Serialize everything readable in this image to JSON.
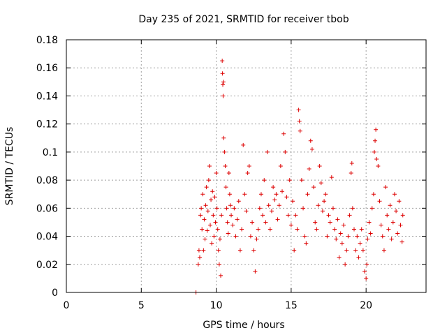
{
  "chart_data": {
    "type": "scatter",
    "title": "Day 235 of 2021, SRMTID for receiver tbob",
    "xlabel": "GPS time / hours",
    "ylabel": "SRMTID / TECUs",
    "xlim": [
      0,
      24
    ],
    "ylim": [
      0,
      0.18
    ],
    "xticks": [
      0,
      5,
      10,
      15,
      20
    ],
    "yticks": [
      0,
      0.02,
      0.04,
      0.06,
      0.08,
      0.1,
      0.12,
      0.14,
      0.16,
      0.18
    ],
    "xtick_labels": [
      "0",
      "5",
      "10",
      "15",
      "20"
    ],
    "ytick_labels": [
      "0",
      "0.02",
      "0.04",
      "0.06",
      "0.08",
      "0.1",
      "0.12",
      "0.14",
      "0.16",
      "0.18"
    ],
    "grid": true,
    "marker": "+",
    "color": "#dd0000",
    "series": [
      {
        "name": "SRMTID",
        "points": [
          [
            8.65,
            0.0
          ],
          [
            8.8,
            0.02
          ],
          [
            8.85,
            0.03
          ],
          [
            8.9,
            0.025
          ],
          [
            8.95,
            0.055
          ],
          [
            9.0,
            0.06
          ],
          [
            9.05,
            0.045
          ],
          [
            9.1,
            0.07
          ],
          [
            9.15,
            0.03
          ],
          [
            9.2,
            0.052
          ],
          [
            9.25,
            0.038
          ],
          [
            9.3,
            0.062
          ],
          [
            9.35,
            0.075
          ],
          [
            9.4,
            0.044
          ],
          [
            9.45,
            0.058
          ],
          [
            9.5,
            0.08
          ],
          [
            9.55,
            0.09
          ],
          [
            9.6,
            0.048
          ],
          [
            9.65,
            0.066
          ],
          [
            9.7,
            0.035
          ],
          [
            9.75,
            0.072
          ],
          [
            9.8,
            0.055
          ],
          [
            9.85,
            0.04
          ],
          [
            9.9,
            0.068
          ],
          [
            9.95,
            0.05
          ],
          [
            10.0,
            0.085
          ],
          [
            10.05,
            0.06
          ],
          [
            10.1,
            0.045
          ],
          [
            10.15,
            0.03
          ],
          [
            10.2,
            0.02
          ],
          [
            10.25,
            0.038
          ],
          [
            10.3,
            0.012
          ],
          [
            10.35,
            0.055
          ],
          [
            10.4,
            0.165
          ],
          [
            10.42,
            0.156
          ],
          [
            10.44,
            0.148
          ],
          [
            10.46,
            0.14
          ],
          [
            10.48,
            0.15
          ],
          [
            10.5,
            0.11
          ],
          [
            10.55,
            0.1
          ],
          [
            10.6,
            0.09
          ],
          [
            10.65,
            0.075
          ],
          [
            10.7,
            0.06
          ],
          [
            10.75,
            0.05
          ],
          [
            10.8,
            0.042
          ],
          [
            10.85,
            0.085
          ],
          [
            10.9,
            0.07
          ],
          [
            10.95,
            0.062
          ],
          [
            11.0,
            0.055
          ],
          [
            11.1,
            0.048
          ],
          [
            11.2,
            0.06
          ],
          [
            11.3,
            0.04
          ],
          [
            11.4,
            0.052
          ],
          [
            11.5,
            0.065
          ],
          [
            11.6,
            0.03
          ],
          [
            11.7,
            0.045
          ],
          [
            11.8,
            0.105
          ],
          [
            11.9,
            0.07
          ],
          [
            12.0,
            0.058
          ],
          [
            12.1,
            0.085
          ],
          [
            12.2,
            0.09
          ],
          [
            12.3,
            0.04
          ],
          [
            12.4,
            0.05
          ],
          [
            12.5,
            0.03
          ],
          [
            12.6,
            0.015
          ],
          [
            12.7,
            0.038
          ],
          [
            12.8,
            0.045
          ],
          [
            12.9,
            0.06
          ],
          [
            13.0,
            0.07
          ],
          [
            13.1,
            0.055
          ],
          [
            13.2,
            0.08
          ],
          [
            13.3,
            0.05
          ],
          [
            13.4,
            0.1
          ],
          [
            13.5,
            0.062
          ],
          [
            13.6,
            0.045
          ],
          [
            13.7,
            0.058
          ],
          [
            13.8,
            0.075
          ],
          [
            13.9,
            0.066
          ],
          [
            14.0,
            0.07
          ],
          [
            14.1,
            0.052
          ],
          [
            14.2,
            0.062
          ],
          [
            14.3,
            0.09
          ],
          [
            14.4,
            0.072
          ],
          [
            14.5,
            0.113
          ],
          [
            14.6,
            0.1
          ],
          [
            14.7,
            0.068
          ],
          [
            14.8,
            0.055
          ],
          [
            14.9,
            0.08
          ],
          [
            15.0,
            0.048
          ],
          [
            15.1,
            0.065
          ],
          [
            15.2,
            0.03
          ],
          [
            15.3,
            0.055
          ],
          [
            15.4,
            0.045
          ],
          [
            15.5,
            0.13
          ],
          [
            15.55,
            0.122
          ],
          [
            15.6,
            0.115
          ],
          [
            15.7,
            0.08
          ],
          [
            15.8,
            0.06
          ],
          [
            15.9,
            0.04
          ],
          [
            16.0,
            0.035
          ],
          [
            16.1,
            0.07
          ],
          [
            16.2,
            0.088
          ],
          [
            16.3,
            0.108
          ],
          [
            16.4,
            0.102
          ],
          [
            16.5,
            0.075
          ],
          [
            16.6,
            0.05
          ],
          [
            16.7,
            0.045
          ],
          [
            16.8,
            0.062
          ],
          [
            16.9,
            0.09
          ],
          [
            17.0,
            0.078
          ],
          [
            17.1,
            0.058
          ],
          [
            17.2,
            0.065
          ],
          [
            17.3,
            0.07
          ],
          [
            17.4,
            0.04
          ],
          [
            17.5,
            0.055
          ],
          [
            17.6,
            0.05
          ],
          [
            17.7,
            0.082
          ],
          [
            17.8,
            0.06
          ],
          [
            17.9,
            0.045
          ],
          [
            18.0,
            0.038
          ],
          [
            18.1,
            0.052
          ],
          [
            18.2,
            0.025
          ],
          [
            18.3,
            0.042
          ],
          [
            18.4,
            0.035
          ],
          [
            18.5,
            0.048
          ],
          [
            18.6,
            0.02
          ],
          [
            18.7,
            0.03
          ],
          [
            18.8,
            0.04
          ],
          [
            18.9,
            0.055
          ],
          [
            19.0,
            0.085
          ],
          [
            19.05,
            0.092
          ],
          [
            19.1,
            0.06
          ],
          [
            19.2,
            0.045
          ],
          [
            19.3,
            0.03
          ],
          [
            19.4,
            0.04
          ],
          [
            19.5,
            0.025
          ],
          [
            19.6,
            0.035
          ],
          [
            19.7,
            0.045
          ],
          [
            19.8,
            0.03
          ],
          [
            19.9,
            0.015
          ],
          [
            20.0,
            0.01
          ],
          [
            20.05,
            0.02
          ],
          [
            20.1,
            0.038
          ],
          [
            20.2,
            0.05
          ],
          [
            20.3,
            0.042
          ],
          [
            20.4,
            0.06
          ],
          [
            20.5,
            0.07
          ],
          [
            20.55,
            0.1
          ],
          [
            20.6,
            0.108
          ],
          [
            20.65,
            0.116
          ],
          [
            20.7,
            0.095
          ],
          [
            20.8,
            0.09
          ],
          [
            20.9,
            0.065
          ],
          [
            21.0,
            0.048
          ],
          [
            21.1,
            0.04
          ],
          [
            21.2,
            0.03
          ],
          [
            21.3,
            0.075
          ],
          [
            21.4,
            0.055
          ],
          [
            21.5,
            0.045
          ],
          [
            21.6,
            0.062
          ],
          [
            21.7,
            0.038
          ],
          [
            21.8,
            0.05
          ],
          [
            21.9,
            0.07
          ],
          [
            22.0,
            0.058
          ],
          [
            22.1,
            0.042
          ],
          [
            22.2,
            0.065
          ],
          [
            22.3,
            0.048
          ],
          [
            22.4,
            0.036
          ],
          [
            22.45,
            0.055
          ]
        ]
      }
    ]
  }
}
